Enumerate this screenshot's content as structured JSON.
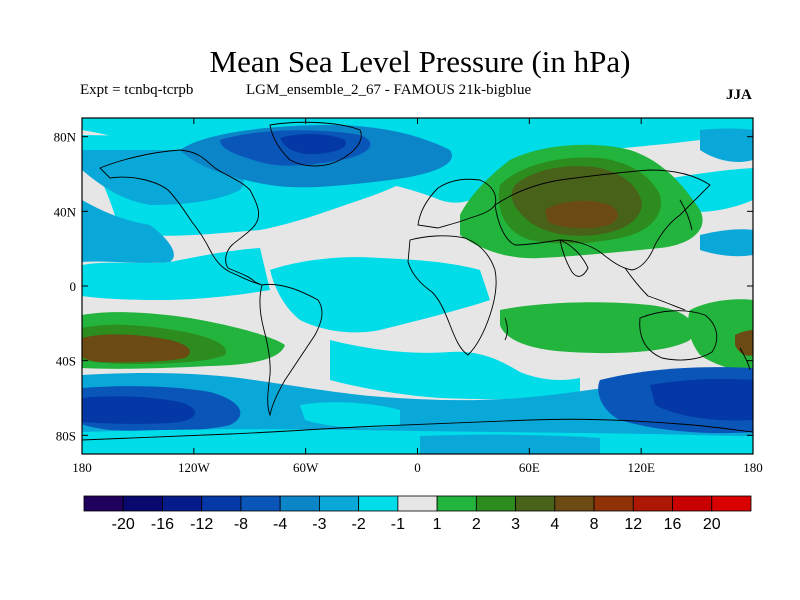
{
  "title": "Mean Sea Level Pressure (in hPa)",
  "subtitle_left": "Expt = tcnbq-tcrpb",
  "subtitle_mid": "LGM_ensemble_2_67 - FAMOUS 21k-bigblue",
  "season": "JJA",
  "colors": {
    "land_outline": "#000000",
    "background_neutral": "#e6e6e6"
  },
  "chart_data": {
    "type": "heatmap",
    "title": "Mean Sea Level Pressure (in hPa)",
    "x_ticks": [
      "180",
      "120W",
      "60W",
      "0",
      "60E",
      "120E",
      "180"
    ],
    "y_ticks": [
      "80N",
      "40N",
      "0",
      "40S",
      "80S"
    ],
    "xlim": [
      -180,
      180
    ],
    "ylim": [
      -90,
      90
    ],
    "colorbar": {
      "labels": [
        "-20",
        "-16",
        "-12",
        "-8",
        "-4",
        "-3",
        "-2",
        "-1",
        "1",
        "2",
        "3",
        "4",
        "8",
        "12",
        "16",
        "20"
      ],
      "colors": [
        "#20005c",
        "#08086e",
        "#061c8c",
        "#0338a6",
        "#0a55b8",
        "#0b84c8",
        "#0aa8d8",
        "#00dce8",
        "#e6e6e6",
        "#22b43c",
        "#2c8c1e",
        "#49621a",
        "#6b4a14",
        "#8f3208",
        "#ad1804",
        "#c80000",
        "#d80000"
      ]
    },
    "regions": [
      {
        "name": "north-atlantic-greenland-low",
        "level": "-4"
      },
      {
        "name": "central-asia-high",
        "level": "4"
      },
      {
        "name": "south-pacific-high",
        "level": "4"
      },
      {
        "name": "southern-ocean-low",
        "level": "-8"
      },
      {
        "name": "south-indian-ocean-high",
        "level": "1"
      }
    ]
  }
}
